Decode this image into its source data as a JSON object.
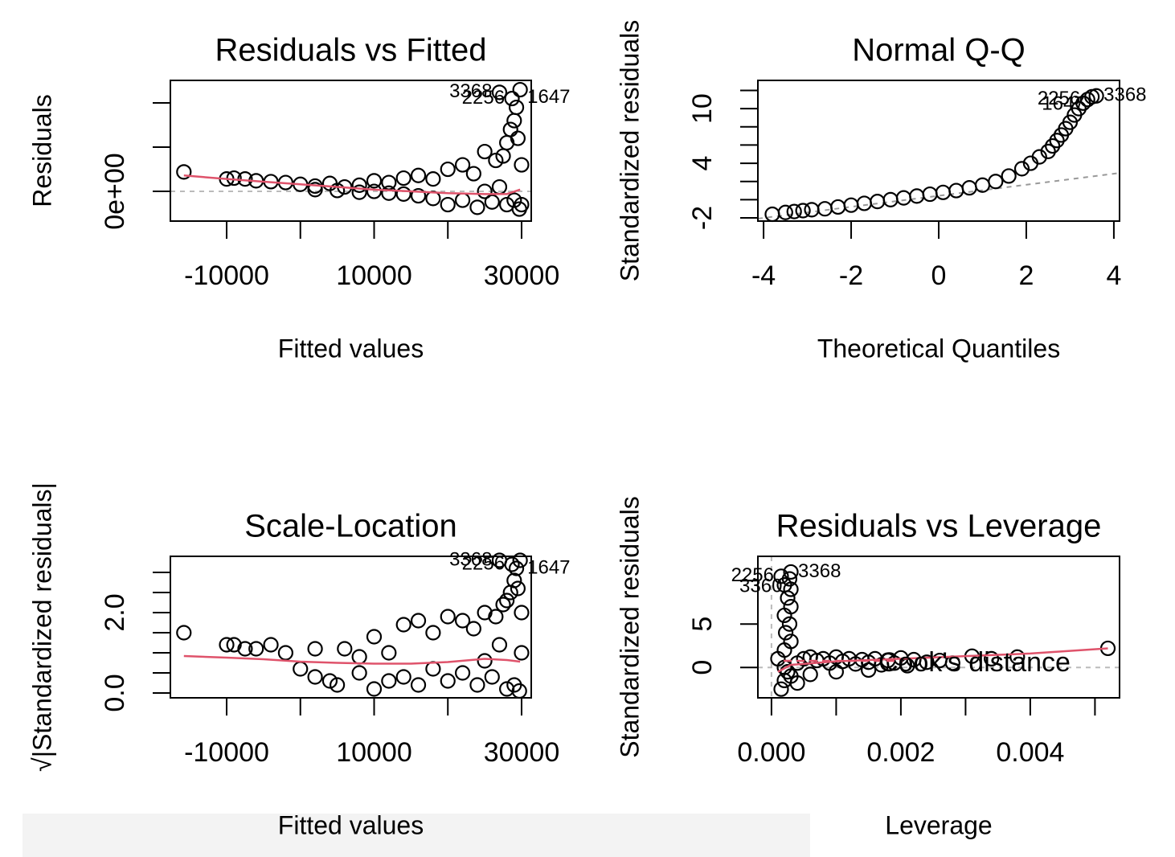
{
  "chart_data": [
    {
      "type": "scatter",
      "title": "Residuals vs Fitted",
      "x_label": "Fitted values",
      "y_label": "Residuals",
      "color": "#000000",
      "x": [
        -15800,
        -10000,
        -9000,
        -7500,
        -6000,
        -4000,
        -2000,
        0,
        2000,
        4000,
        6000,
        8000,
        10000,
        12000,
        14000,
        16000,
        18000,
        20000,
        22000,
        23500,
        25000,
        26500,
        27500,
        28000,
        28500,
        29000,
        29300,
        28700,
        27000,
        29800,
        29500,
        30000,
        29000,
        28000,
        26000,
        24000,
        22000,
        20000,
        18000,
        16000,
        14000,
        12000,
        10000,
        8000,
        5000,
        2000,
        29700,
        30000,
        27000,
        25000
      ],
      "y": [
        22000,
        14000,
        15000,
        14000,
        12000,
        11000,
        10000,
        8000,
        6000,
        9000,
        5000,
        7000,
        12000,
        10000,
        15000,
        18000,
        14000,
        25000,
        30000,
        20000,
        45000,
        35000,
        40000,
        55000,
        70000,
        80000,
        95000,
        105000,
        112000,
        115000,
        60000,
        30000,
        -10000,
        -15000,
        -12000,
        -18000,
        -10000,
        -15000,
        -8000,
        -5000,
        -3000,
        -2000,
        0,
        -1000,
        1000,
        2000,
        -20000,
        -15000,
        5000,
        0
      ],
      "xlim": [
        -17630,
        31310
      ],
      "ylim": [
        -33600,
        125500
      ],
      "xticks": [
        -10000,
        {
          "value": 0,
          "label": null
        },
        10000,
        {
          "value": 20000,
          "label": null
        },
        30000
      ],
      "yticks": [
        {
          "value": 0,
          "label": "0e+00"
        },
        {
          "value": 50000,
          "label": null
        },
        {
          "value": 100000,
          "label": null
        }
      ],
      "smooth": {
        "color": "#df536b",
        "x": [
          -15800,
          -10000,
          -5000,
          0,
          5000,
          10000,
          15000,
          20000,
          25000,
          28000,
          29800
        ],
        "y": [
          18000,
          14000,
          11000,
          8000,
          5000,
          2000,
          0,
          -2000,
          -3000,
          -3000,
          2000
        ]
      },
      "hline": 0,
      "point_labels": [
        {
          "text": "2256",
          "point": 27
        },
        {
          "text": "3368",
          "point": 28
        },
        {
          "text": "1647",
          "point": 29
        }
      ]
    },
    {
      "type": "scatter",
      "title": "Normal Q-Q",
      "x_label": "Theoretical Quantiles",
      "y_label": "Standardized residuals",
      "color": "#000000",
      "x": [
        -3.8,
        -3.5,
        -3.3,
        -3.1,
        -2.9,
        -2.6,
        -2.3,
        -2,
        -1.7,
        -1.4,
        -1.1,
        -0.8,
        -0.5,
        -0.2,
        0.1,
        0.4,
        0.7,
        1,
        1.3,
        1.6,
        1.9,
        2.1,
        2.3,
        2.5,
        2.6,
        2.7,
        2.8,
        2.9,
        3.0,
        3.1,
        3.2,
        3.3,
        3.4,
        3.5,
        3.6
      ],
      "y": [
        -1.6,
        -1.4,
        -1.3,
        -1.2,
        -1.1,
        -1.0,
        -0.8,
        -0.6,
        -0.4,
        -0.2,
        0.0,
        0.2,
        0.4,
        0.6,
        0.8,
        1.0,
        1.3,
        1.6,
        2.0,
        2.6,
        3.4,
        4.0,
        4.7,
        5.3,
        5.9,
        6.5,
        7.1,
        7.8,
        8.5,
        9.3,
        10.0,
        10.6,
        11.0,
        11.3,
        11.4
      ],
      "xlim": [
        -4.13,
        4.13
      ],
      "ylim": [
        -2.35,
        13.1
      ],
      "xticks": [
        -4,
        -2,
        0,
        2,
        4
      ],
      "yticks": [
        -2,
        {
          "value": 0,
          "label": null
        },
        {
          "value": 2,
          "label": null
        },
        4,
        {
          "value": 6,
          "label": null
        },
        {
          "value": 8,
          "label": null
        },
        10,
        {
          "value": 12,
          "label": null
        }
      ],
      "qqline": {
        "x": [
          -4.13,
          4.13
        ],
        "y": [
          -2.08,
          2.93
        ]
      },
      "point_labels": [
        {
          "text": "2256",
          "point": 32
        },
        {
          "text": "3368",
          "point": 34
        },
        {
          "text": "1647",
          "point": 33
        }
      ]
    },
    {
      "type": "scatter",
      "title": "Scale-Location",
      "x_label": "Fitted values",
      "y_label": "√|Standardized residuals|",
      "color": "#000000",
      "x": [
        -15800,
        -10000,
        -9000,
        -7500,
        -6000,
        -4000,
        -2000,
        0,
        2000,
        4000,
        6000,
        8000,
        10000,
        12000,
        14000,
        16000,
        18000,
        20000,
        22000,
        23500,
        25000,
        26500,
        27500,
        28000,
        28500,
        29000,
        29300,
        28700,
        27000,
        29800,
        29500,
        30000,
        29000,
        28000,
        26000,
        24000,
        22000,
        20000,
        18000,
        16000,
        14000,
        12000,
        10000,
        8000,
        5000,
        2000,
        29700,
        30000,
        27000,
        25000
      ],
      "y": [
        1.5,
        1.2,
        1.2,
        1.1,
        1.1,
        1.2,
        1.0,
        0.6,
        1.1,
        0.3,
        1.1,
        0.9,
        1.4,
        1.0,
        1.7,
        1.8,
        1.5,
        1.9,
        1.8,
        1.6,
        2.0,
        1.9,
        2.2,
        2.3,
        2.5,
        2.8,
        3.1,
        3.2,
        3.3,
        3.3,
        2.6,
        2.0,
        0.2,
        0.1,
        0.4,
        0.2,
        0.5,
        0.3,
        0.6,
        0.2,
        0.4,
        0.3,
        0.1,
        0.5,
        0.2,
        0.4,
        0.05,
        1.0,
        1.2,
        0.8
      ],
      "xlim": [
        -17630,
        31310
      ],
      "ylim": [
        -0.12,
        3.4
      ],
      "xticks": [
        -10000,
        {
          "value": 0,
          "label": null
        },
        10000,
        {
          "value": 20000,
          "label": null
        },
        30000
      ],
      "yticks": [
        {
          "value": 0,
          "label": "0.0"
        },
        {
          "value": 0.5,
          "label": null
        },
        {
          "value": 1,
          "label": null
        },
        {
          "value": 1.5,
          "label": null
        },
        {
          "value": 2,
          "label": "2.0"
        },
        {
          "value": 2.5,
          "label": null
        },
        {
          "value": 3,
          "label": null
        }
      ],
      "smooth": {
        "color": "#df536b",
        "x": [
          -15800,
          -10000,
          -5000,
          0,
          5000,
          10000,
          15000,
          20000,
          25000,
          28000,
          29800
        ],
        "y": [
          0.92,
          0.88,
          0.84,
          0.78,
          0.75,
          0.73,
          0.73,
          0.77,
          0.85,
          0.82,
          0.78
        ]
      },
      "point_labels": [
        {
          "text": "2256",
          "point": 27
        },
        {
          "text": "3368",
          "point": 28
        },
        {
          "text": "1647",
          "point": 29
        }
      ]
    },
    {
      "type": "scatter",
      "title": "Residuals vs Leverage",
      "x_label": "Leverage",
      "y_label": "Standardized residuals",
      "color": "#000000",
      "x": [
        0.00015,
        0.0002,
        0.00025,
        0.0001,
        0.0002,
        0.0003,
        0.00022,
        0.00028,
        0.0002,
        0.0003,
        0.00025,
        0.0003,
        0.0002,
        0.00028,
        0.00015,
        0.0003,
        0.0002,
        0.0003,
        0.0004,
        0.0005,
        0.0006,
        0.0007,
        0.0008,
        0.0009,
        0.001,
        0.0011,
        0.0012,
        0.0013,
        0.0014,
        0.0015,
        0.0016,
        0.0017,
        0.0018,
        0.0019,
        0.002,
        0.0021,
        0.0022,
        0.0024,
        0.0026,
        0.0028,
        0.0031,
        0.0034,
        0.0038,
        0.0052,
        0.0004,
        0.0006,
        0.001,
        0.0015
      ],
      "y": [
        -2.5,
        -1.5,
        -0.5,
        1,
        2,
        3,
        4,
        5,
        6,
        7,
        8,
        9,
        9.5,
        10.2,
        10.5,
        11,
        0,
        -1,
        0.5,
        1,
        1.2,
        0.8,
        1.0,
        0.5,
        1.2,
        0.7,
        1.0,
        0.4,
        0.9,
        0.6,
        1.0,
        0.3,
        0.8,
        0.5,
        1.1,
        0.2,
        0.9,
        0.6,
        0.8,
        0.5,
        1.3,
        1.0,
        1.2,
        2.2,
        -1.8,
        -0.8,
        -0.5,
        -0.3
      ],
      "xlim": [
        -0.00021,
        0.00538
      ],
      "ylim": [
        -3.5,
        12.8
      ],
      "xticks": [
        {
          "value": 0,
          "label": "0.000"
        },
        {
          "value": 0.001,
          "label": null
        },
        {
          "value": 0.002,
          "label": "0.002"
        },
        {
          "value": 0.003,
          "label": null
        },
        {
          "value": 0.004,
          "label": "0.004"
        },
        {
          "value": 0.005,
          "label": null
        }
      ],
      "yticks": [
        0,
        5,
        {
          "value": 10,
          "label": null
        }
      ],
      "smooth": {
        "color": "#df536b",
        "x": [
          0.0001,
          0.0003,
          0.001,
          0.002,
          0.003,
          0.004,
          0.0052
        ],
        "y": [
          -0.5,
          0.3,
          0.7,
          1.0,
          1.3,
          1.6,
          2.2
        ]
      },
      "hline": 0,
      "vline": 0,
      "legend": {
        "text": "Cook's distance",
        "color": "#df536b"
      },
      "point_labels": [
        {
          "text": "2256",
          "point": 14
        },
        {
          "text": "3368",
          "point": 15
        },
        {
          "text": "3360",
          "point": 13
        }
      ]
    }
  ]
}
